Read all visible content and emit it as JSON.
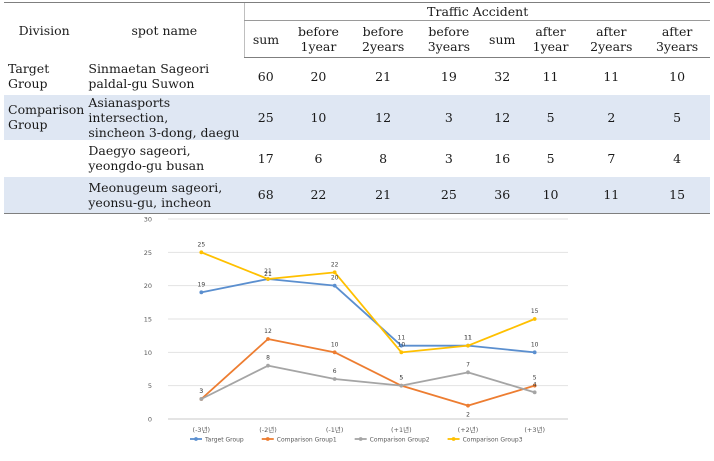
{
  "table": {
    "header": {
      "division": "Division",
      "spot": "spot name",
      "group": "Traffic Accident",
      "cols": [
        "sum",
        "before\n1year",
        "before\n2years",
        "before\n3years",
        "sum",
        "after\n1year",
        "after\n2years",
        "after\n3years"
      ]
    },
    "rows": [
      {
        "division": "Target\nGroup",
        "spot": "Sinmaetan Sageori\npaldal-gu Suwon",
        "values": [
          "60",
          "20",
          "21",
          "19",
          "32",
          "11",
          "11",
          "10"
        ]
      },
      {
        "division": "Comparison\nGroup",
        "spot": "Asianasports intersection,\nsincheon 3-dong, daegu",
        "values": [
          "25",
          "10",
          "12",
          "3",
          "12",
          "5",
          "2",
          "5"
        ]
      },
      {
        "division": "",
        "spot": "Daegyo sageori,\nyeongdo-gu busan",
        "values": [
          "17",
          "6",
          "8",
          "3",
          "16",
          "5",
          "7",
          "4"
        ]
      },
      {
        "division": "",
        "spot": "Meonugeum sageori,\nyeonsu-gu, incheon",
        "values": [
          "68",
          "22",
          "21",
          "25",
          "36",
          "10",
          "11",
          "15"
        ]
      }
    ]
  },
  "chart_data": {
    "type": "line",
    "categories": [
      "(-3년)",
      "(-2년)",
      "(-1년)",
      "(+1년)",
      "(+2년)",
      "(+3년)"
    ],
    "ylim": [
      0,
      30
    ],
    "yticks": [
      0,
      5,
      10,
      15,
      20,
      25,
      30
    ],
    "grid": true,
    "legend_position": "bottom",
    "series": [
      {
        "name": "Target Group",
        "color": "#5b8fcf",
        "values": [
          19,
          21,
          20,
          11,
          11,
          10
        ]
      },
      {
        "name": "Comparison Group1",
        "color": "#ed7d31",
        "values": [
          3,
          12,
          10,
          5,
          2,
          5
        ]
      },
      {
        "name": "Comparison Group2",
        "color": "#a5a5a5",
        "values": [
          3,
          8,
          6,
          5,
          7,
          4
        ]
      },
      {
        "name": "Comparison Group3",
        "color": "#ffc000",
        "values": [
          25,
          21,
          22,
          10,
          11,
          15
        ]
      }
    ]
  }
}
